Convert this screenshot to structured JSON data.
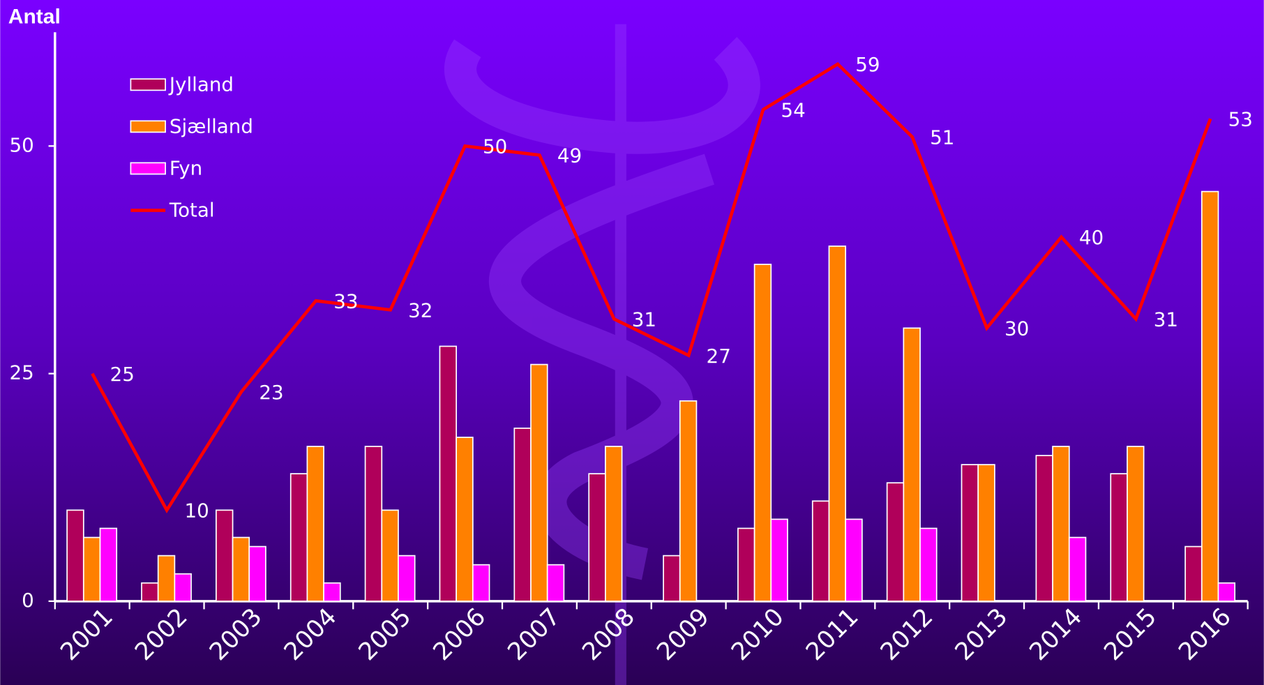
{
  "chart_data": {
    "type": "bar",
    "y_label": "Antal",
    "categories": [
      "2001",
      "2002",
      "2003",
      "2004",
      "2005",
      "2006",
      "2007",
      "2008",
      "2009",
      "2010",
      "2011",
      "2012",
      "2013",
      "2014",
      "2015",
      "2016"
    ],
    "series": [
      {
        "name": "Jylland",
        "color": "#b0005a",
        "values": [
          10,
          2,
          10,
          14,
          17,
          28,
          19,
          14,
          5,
          8,
          11,
          13,
          15,
          16,
          14,
          6
        ]
      },
      {
        "name": "Sjælland",
        "color": "#ff8000",
        "values": [
          7,
          5,
          7,
          17,
          10,
          18,
          26,
          17,
          22,
          37,
          39,
          30,
          15,
          17,
          17,
          45
        ]
      },
      {
        "name": "Fyn",
        "color": "#ff00ff",
        "values": [
          8,
          3,
          6,
          2,
          5,
          4,
          4,
          0,
          0,
          9,
          9,
          8,
          0,
          7,
          0,
          2
        ]
      },
      {
        "name": "Total",
        "type": "line",
        "color": "#ff0000",
        "values": [
          25,
          10,
          23,
          33,
          32,
          50,
          49,
          31,
          27,
          54,
          59,
          51,
          30,
          40,
          31,
          53
        ]
      }
    ],
    "ylim": [
      0,
      62.5
    ],
    "yticks": [
      0,
      25,
      50
    ]
  }
}
